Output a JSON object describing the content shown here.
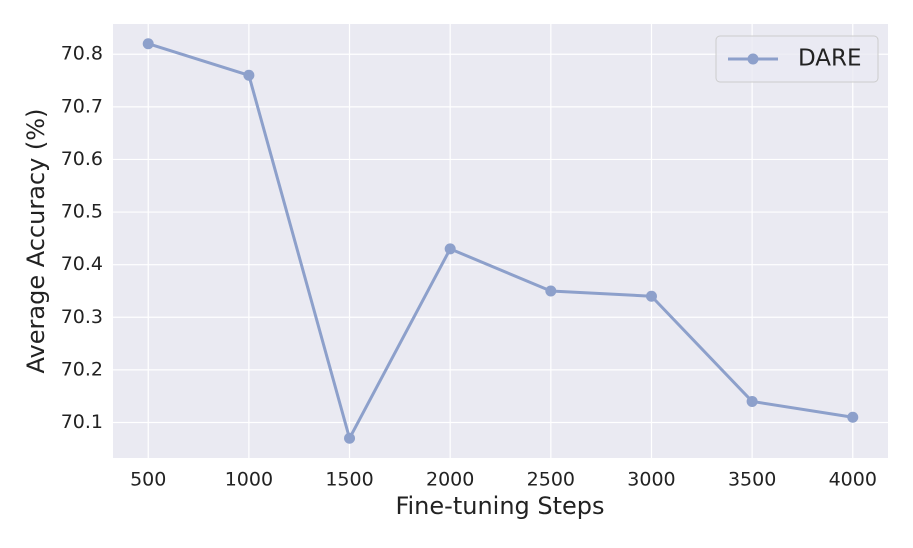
{
  "chart_data": {
    "type": "line",
    "x_label": "Fine-tuning Steps",
    "y_label": "Average Accuracy (%)",
    "x": [
      500,
      1000,
      1500,
      2000,
      2500,
      3000,
      3500,
      4000
    ],
    "series": [
      {
        "name": "DARE",
        "color": "#8da0cb",
        "values": [
          70.82,
          70.76,
          70.07,
          70.43,
          70.35,
          70.34,
          70.14,
          70.11
        ]
      }
    ],
    "xlim": [
      325,
      4175
    ],
    "xticks": [
      500,
      1000,
      1500,
      2000,
      2500,
      3000,
      3500,
      4000
    ],
    "ylim": [
      70.0325,
      70.8575
    ],
    "yticks": [
      70.1,
      70.2,
      70.3,
      70.4,
      70.5,
      70.6,
      70.7,
      70.8
    ],
    "grid": true,
    "legend": "upper right"
  }
}
